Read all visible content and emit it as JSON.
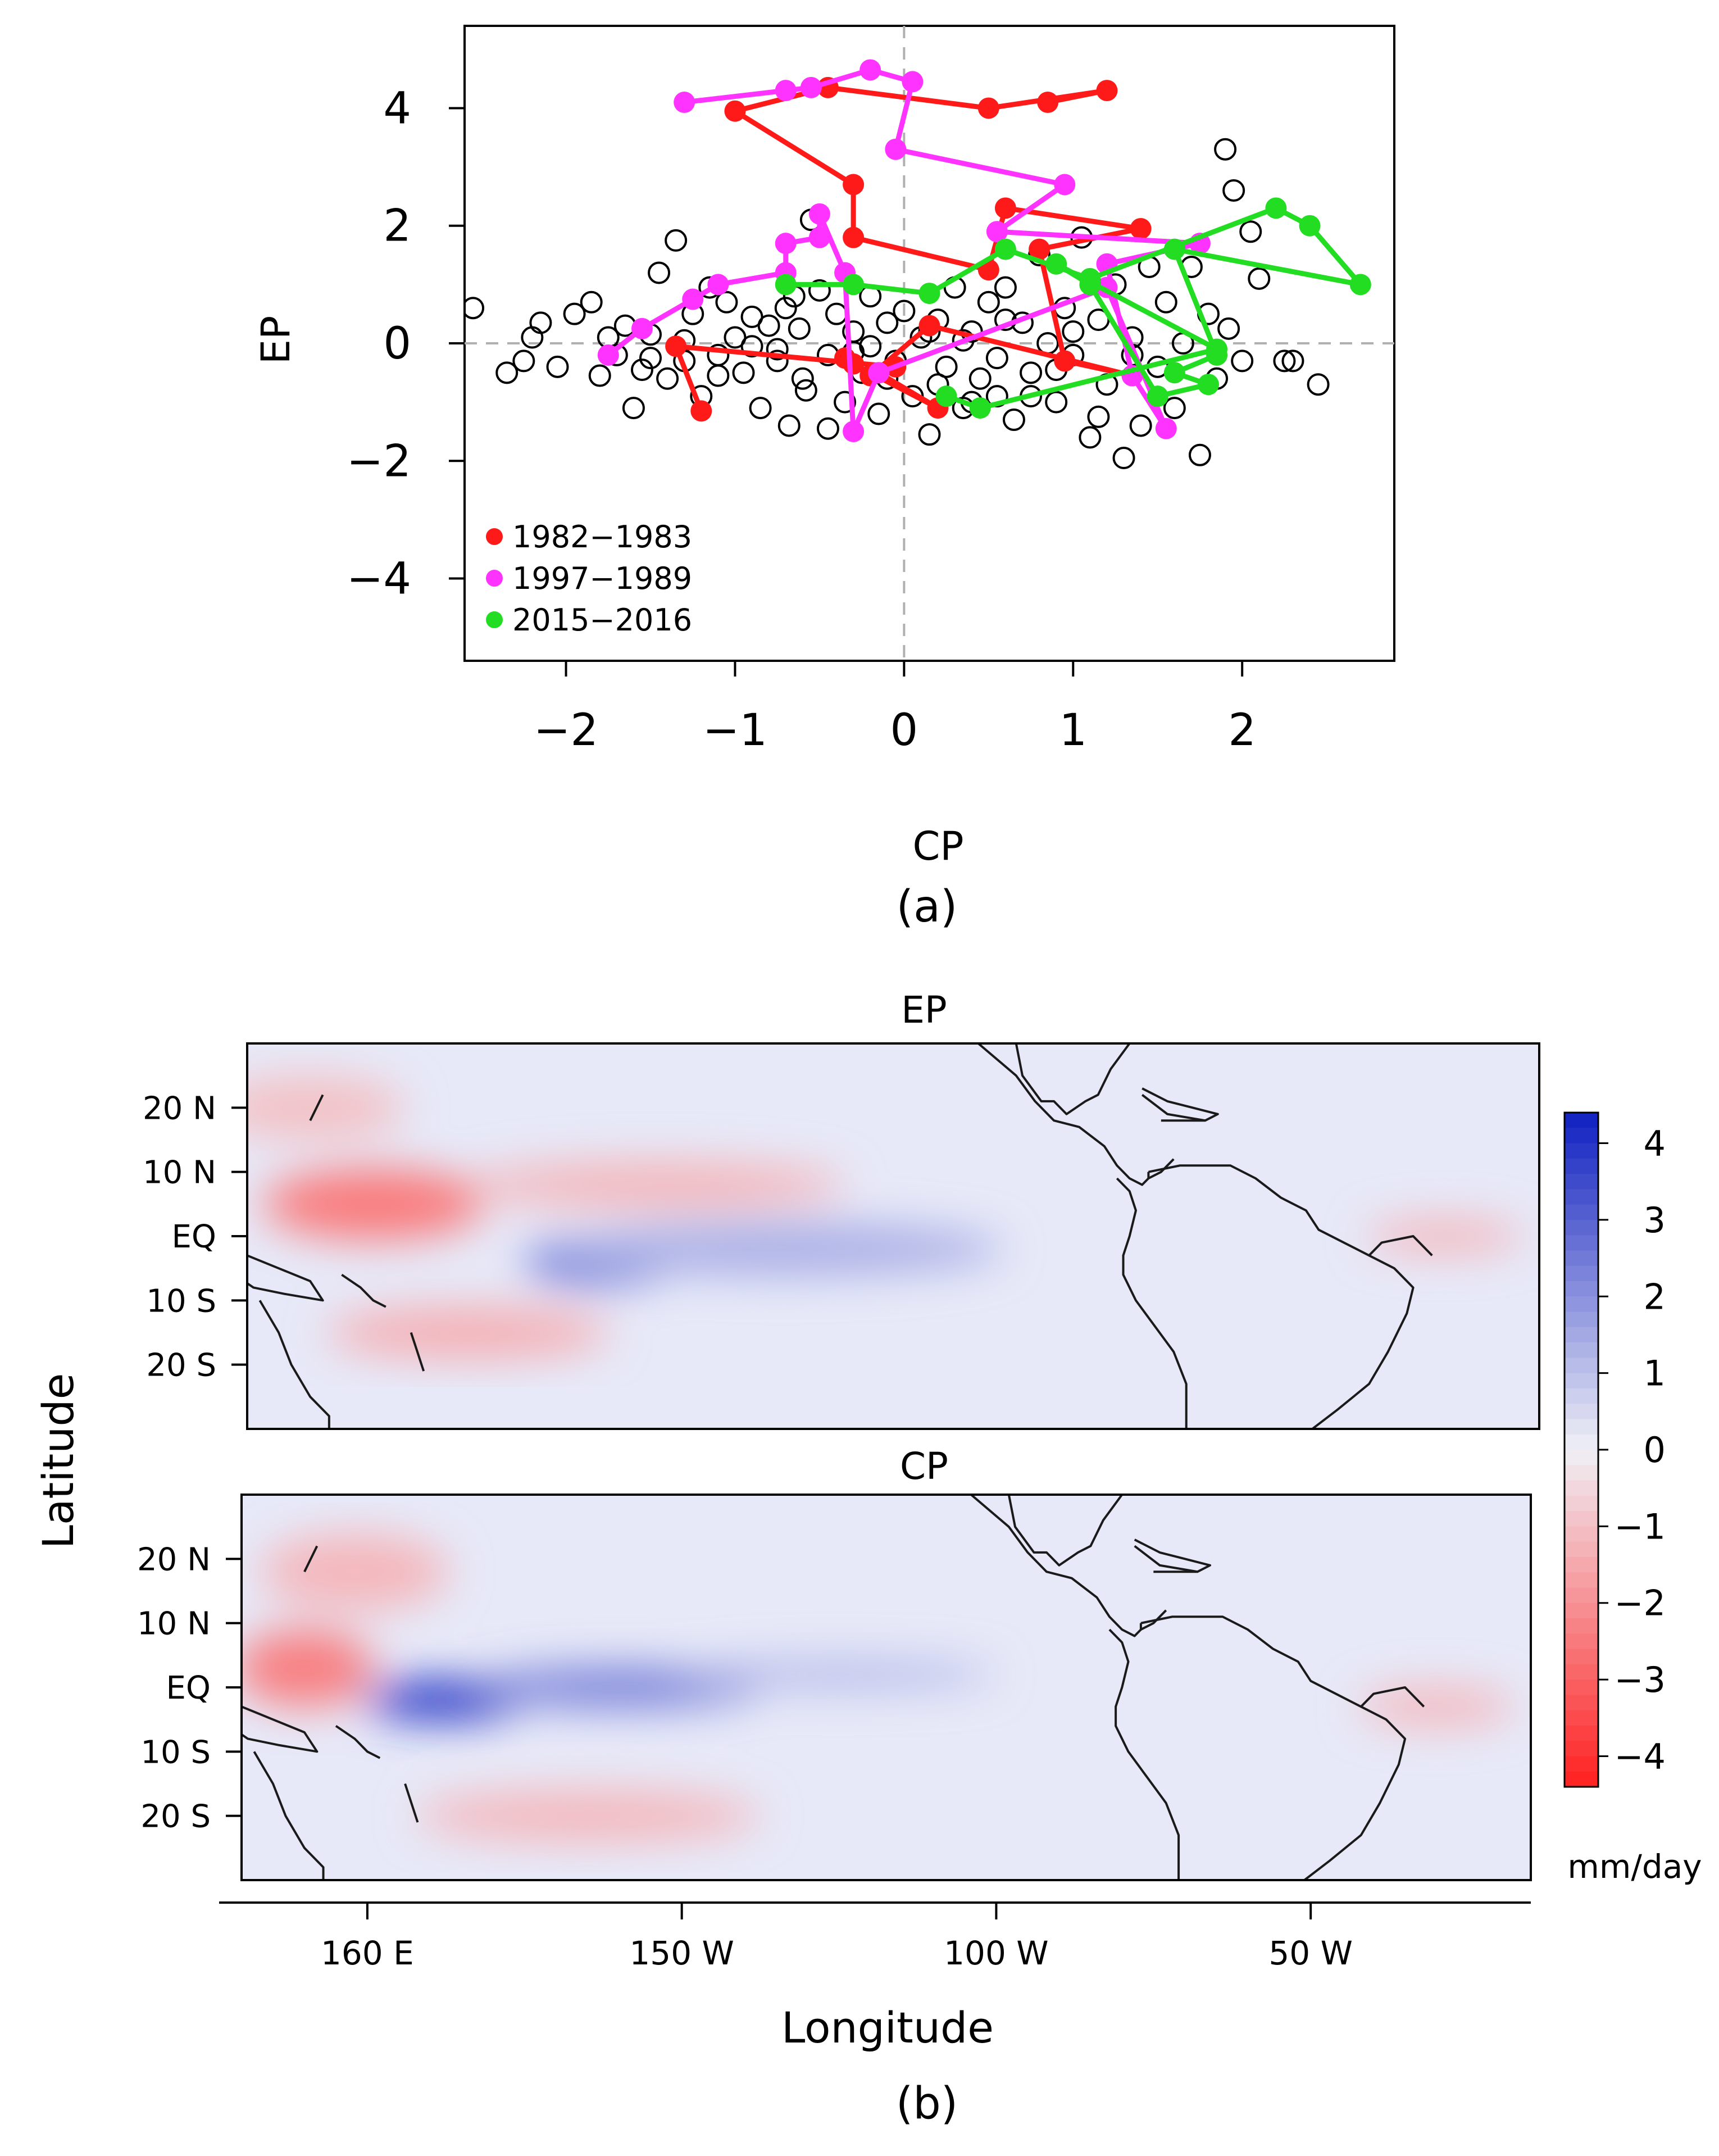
{
  "chart_data": [
    {
      "type": "scatter",
      "panel_label": "(a)",
      "xlabel": "CP",
      "ylabel": "EP",
      "xlim": [
        -2.6,
        2.9
      ],
      "ylim": [
        -5.4,
        5.4
      ],
      "x_ticks": [
        -2,
        -1,
        0,
        1,
        2
      ],
      "x_tick_labels": [
        "−2",
        "−1",
        "0",
        "1",
        "2"
      ],
      "y_ticks": [
        -4,
        -2,
        0,
        2,
        4
      ],
      "y_tick_labels": [
        "−4",
        "−2",
        "0",
        "2",
        "4"
      ],
      "reference_lines": {
        "x": 0,
        "y": 0,
        "style": "dashed gray"
      },
      "legend_position": "bottom-left",
      "background_points": {
        "marker": "open circle",
        "points": [
          [
            -2.55,
            0.6
          ],
          [
            -2.35,
            -0.5
          ],
          [
            -2.25,
            -0.3
          ],
          [
            -2.2,
            0.1
          ],
          [
            -2.15,
            0.35
          ],
          [
            -2.05,
            -0.4
          ],
          [
            -1.95,
            0.5
          ],
          [
            -1.85,
            0.7
          ],
          [
            -1.8,
            -0.55
          ],
          [
            -1.75,
            0.1
          ],
          [
            -1.7,
            -0.2
          ],
          [
            -1.65,
            0.3
          ],
          [
            -1.6,
            -1.1
          ],
          [
            -1.55,
            -0.45
          ],
          [
            -1.5,
            0.15
          ],
          [
            -1.45,
            1.2
          ],
          [
            -1.4,
            -0.6
          ],
          [
            -1.35,
            1.75
          ],
          [
            -1.3,
            -0.3
          ],
          [
            -1.25,
            0.5
          ],
          [
            -1.2,
            -0.9
          ],
          [
            -1.15,
            0.95
          ],
          [
            -1.1,
            -0.2
          ],
          [
            -1.05,
            0.7
          ],
          [
            -1.0,
            0.1
          ],
          [
            -0.95,
            -0.5
          ],
          [
            -0.9,
            0.45
          ],
          [
            -0.85,
            -1.1
          ],
          [
            -0.8,
            0.3
          ],
          [
            -0.75,
            -0.3
          ],
          [
            -0.7,
            0.6
          ],
          [
            -0.68,
            -1.4
          ],
          [
            -0.62,
            0.25
          ],
          [
            -0.58,
            -0.8
          ],
          [
            -0.55,
            2.1
          ],
          [
            -0.5,
            0.9
          ],
          [
            -0.45,
            -0.2
          ],
          [
            -0.4,
            0.5
          ],
          [
            -0.35,
            -1.0
          ],
          [
            -0.3,
            0.2
          ],
          [
            -0.25,
            -0.5
          ],
          [
            -0.2,
            0.8
          ],
          [
            -0.15,
            -1.2
          ],
          [
            -0.1,
            0.35
          ],
          [
            -0.05,
            -0.3
          ],
          [
            0.0,
            0.55
          ],
          [
            0.05,
            -0.9
          ],
          [
            0.1,
            0.1
          ],
          [
            0.15,
            -1.55
          ],
          [
            0.2,
            0.4
          ],
          [
            0.25,
            -0.4
          ],
          [
            0.3,
            0.95
          ],
          [
            0.35,
            -1.1
          ],
          [
            0.4,
            0.2
          ],
          [
            0.45,
            -0.6
          ],
          [
            0.5,
            0.7
          ],
          [
            0.55,
            -0.25
          ],
          [
            0.6,
            0.95
          ],
          [
            0.65,
            -1.3
          ],
          [
            0.7,
            0.35
          ],
          [
            0.75,
            -0.5
          ],
          [
            0.8,
            1.5
          ],
          [
            0.85,
            0.0
          ],
          [
            0.9,
            -1.0
          ],
          [
            0.95,
            0.6
          ],
          [
            1.0,
            -0.2
          ],
          [
            1.05,
            1.8
          ],
          [
            1.1,
            -1.6
          ],
          [
            1.15,
            0.4
          ],
          [
            1.2,
            -0.7
          ],
          [
            1.25,
            1.0
          ],
          [
            1.3,
            -1.95
          ],
          [
            1.35,
            0.1
          ],
          [
            1.4,
            -1.4
          ],
          [
            1.45,
            1.3
          ],
          [
            1.5,
            -0.4
          ],
          [
            1.55,
            0.7
          ],
          [
            1.6,
            -1.1
          ],
          [
            1.65,
            0.0
          ],
          [
            1.7,
            1.3
          ],
          [
            1.75,
            -1.9
          ],
          [
            1.8,
            0.5
          ],
          [
            1.85,
            -0.6
          ],
          [
            1.9,
            3.3
          ],
          [
            1.92,
            0.25
          ],
          [
            1.95,
            2.6
          ],
          [
            2.0,
            -0.3
          ],
          [
            2.05,
            1.9
          ],
          [
            2.1,
            1.1
          ],
          [
            2.25,
            -0.3
          ],
          [
            2.3,
            -0.3
          ],
          [
            2.45,
            -0.7
          ],
          [
            -0.3,
            -0.15
          ],
          [
            0.2,
            -0.7
          ],
          [
            -0.6,
            -0.6
          ],
          [
            0.35,
            0.05
          ],
          [
            -0.9,
            -0.05
          ],
          [
            0.75,
            -0.9
          ],
          [
            -1.3,
            0.05
          ],
          [
            0.15,
            0.2
          ],
          [
            -0.1,
            -0.6
          ],
          [
            0.55,
            -0.9
          ],
          [
            -0.75,
            -0.1
          ],
          [
            1.0,
            0.2
          ],
          [
            -0.45,
            -1.45
          ],
          [
            0.9,
            -0.45
          ],
          [
            1.15,
            -1.25
          ],
          [
            -1.1,
            -0.55
          ],
          [
            -0.2,
            -0.05
          ],
          [
            0.4,
            -1.0
          ],
          [
            -0.65,
            0.8
          ],
          [
            1.35,
            -0.2
          ],
          [
            -1.5,
            -0.25
          ],
          [
            0.6,
            0.4
          ]
        ]
      },
      "series": [
        {
          "name": "1982−1983",
          "color": "#ff1a1a",
          "points": [
            [
              0.85,
              4.1
            ],
            [
              1.2,
              4.3
            ],
            [
              0.5,
              4.0
            ],
            [
              -0.45,
              4.35
            ],
            [
              -1.0,
              3.95
            ],
            [
              -0.3,
              2.7
            ],
            [
              -0.3,
              1.8
            ],
            [
              0.5,
              1.25
            ],
            [
              0.6,
              2.3
            ],
            [
              1.4,
              1.95
            ],
            [
              0.8,
              1.6
            ],
            [
              0.95,
              -0.3
            ],
            [
              1.35,
              -0.55
            ],
            [
              0.15,
              0.3
            ],
            [
              -0.2,
              -0.55
            ],
            [
              -0.35,
              -0.25
            ],
            [
              -0.3,
              -0.35
            ],
            [
              0.2,
              -1.1
            ],
            [
              -0.15,
              -0.5
            ],
            [
              -0.05,
              -0.4
            ],
            [
              -1.35,
              -0.05
            ],
            [
              -1.2,
              -1.15
            ]
          ]
        },
        {
          "name": "1997−1989",
          "color": "#ff33ff",
          "points": [
            [
              -1.3,
              4.1
            ],
            [
              -0.7,
              4.3
            ],
            [
              -0.55,
              4.35
            ],
            [
              -0.2,
              4.65
            ],
            [
              0.05,
              4.45
            ],
            [
              -0.05,
              3.3
            ],
            [
              0.95,
              2.7
            ],
            [
              0.55,
              1.9
            ],
            [
              1.75,
              1.7
            ],
            [
              1.2,
              1.35
            ],
            [
              1.35,
              -0.55
            ],
            [
              1.55,
              -1.45
            ],
            [
              1.2,
              0.95
            ],
            [
              -0.15,
              -0.5
            ],
            [
              -0.3,
              -1.5
            ],
            [
              -0.35,
              1.2
            ],
            [
              -0.5,
              2.2
            ],
            [
              -0.5,
              1.8
            ],
            [
              -0.7,
              1.7
            ],
            [
              -0.7,
              1.2
            ],
            [
              -1.1,
              1.0
            ],
            [
              -1.25,
              0.75
            ],
            [
              -1.55,
              0.25
            ],
            [
              -1.75,
              -0.2
            ]
          ]
        },
        {
          "name": "2015−2016",
          "color": "#22dd22",
          "points": [
            [
              -0.7,
              1.0
            ],
            [
              -0.3,
              1.0
            ],
            [
              0.15,
              0.85
            ],
            [
              0.6,
              1.6
            ],
            [
              1.1,
              1.1
            ],
            [
              2.2,
              2.3
            ],
            [
              2.4,
              2.0
            ],
            [
              2.7,
              1.0
            ],
            [
              1.6,
              1.6
            ],
            [
              1.85,
              -0.2
            ],
            [
              1.6,
              -0.5
            ],
            [
              1.8,
              -0.7
            ],
            [
              1.5,
              -0.9
            ],
            [
              1.1,
              1.0
            ],
            [
              0.9,
              1.35
            ],
            [
              1.85,
              -0.1
            ],
            [
              0.45,
              -1.1
            ],
            [
              0.25,
              -0.9
            ]
          ]
        }
      ]
    },
    {
      "type": "heatmap",
      "panel_label": "(b)",
      "panels": [
        {
          "title": "EP",
          "blobs": [
            {
              "lon": 160,
              "lat": 5,
              "lon_extent": 35,
              "lat_extent": 11,
              "value": -2.5
            },
            {
              "lon": 205,
              "lat": 8,
              "lon_extent": 60,
              "lat_extent": 7,
              "value": -1.3
            },
            {
              "lon": 196,
              "lat": -4,
              "lon_extent": 24,
              "lat_extent": 7,
              "value": 2.6
            },
            {
              "lon": 225,
              "lat": -2,
              "lon_extent": 70,
              "lat_extent": 8,
              "value": 1.4
            },
            {
              "lon": 175,
              "lat": -15,
              "lon_extent": 45,
              "lat_extent": 8,
              "value": -1.4
            },
            {
              "lon": 150,
              "lat": 20,
              "lon_extent": 30,
              "lat_extent": 10,
              "value": -1.0
            },
            {
              "lon": 330,
              "lat": 0,
              "lon_extent": 25,
              "lat_extent": 5,
              "value": -1.3
            }
          ]
        },
        {
          "title": "CP",
          "blobs": [
            {
              "lon": 150,
              "lat": 3,
              "lon_extent": 22,
              "lat_extent": 12,
              "value": -2.4
            },
            {
              "lon": 158,
              "lat": 18,
              "lon_extent": 30,
              "lat_extent": 12,
              "value": -1.2
            },
            {
              "lon": 172,
              "lat": -2,
              "lon_extent": 25,
              "lat_extent": 6,
              "value": 4.0
            },
            {
              "lon": 200,
              "lat": 0,
              "lon_extent": 45,
              "lat_extent": 6,
              "value": 2.5
            },
            {
              "lon": 235,
              "lat": 2,
              "lon_extent": 50,
              "lat_extent": 4,
              "value": 1.3
            },
            {
              "lon": 195,
              "lat": -20,
              "lon_extent": 55,
              "lat_extent": 8,
              "value": -1.2
            },
            {
              "lon": 330,
              "lat": -3,
              "lon_extent": 25,
              "lat_extent": 6,
              "value": -1.2
            }
          ]
        }
      ],
      "xlabel": "Longitude",
      "ylabel": "Latitude",
      "lon_range": [
        140,
        345
      ],
      "lat_range": [
        -30,
        30
      ],
      "x_ticks": [
        160,
        210,
        260,
        310
      ],
      "x_tick_labels": [
        "160 E",
        "150 W",
        "100 W",
        "50 W"
      ],
      "y_ticks": [
        20,
        10,
        0,
        -10,
        -20
      ],
      "y_tick_labels": [
        "20 N",
        "10 N",
        "EQ",
        "10 S",
        "20 S"
      ],
      "colorbar": {
        "range": [
          -4.4,
          4.4
        ],
        "ticks": [
          4,
          3,
          2,
          1,
          0,
          -1,
          -2,
          -3,
          -4
        ],
        "tick_labels": [
          "4",
          "3",
          "2",
          "1",
          "0",
          "−1",
          "−2",
          "−3",
          "−4"
        ],
        "units": "mm/day",
        "high_color": "#1020c0",
        "low_color": "#ff2020"
      }
    }
  ]
}
